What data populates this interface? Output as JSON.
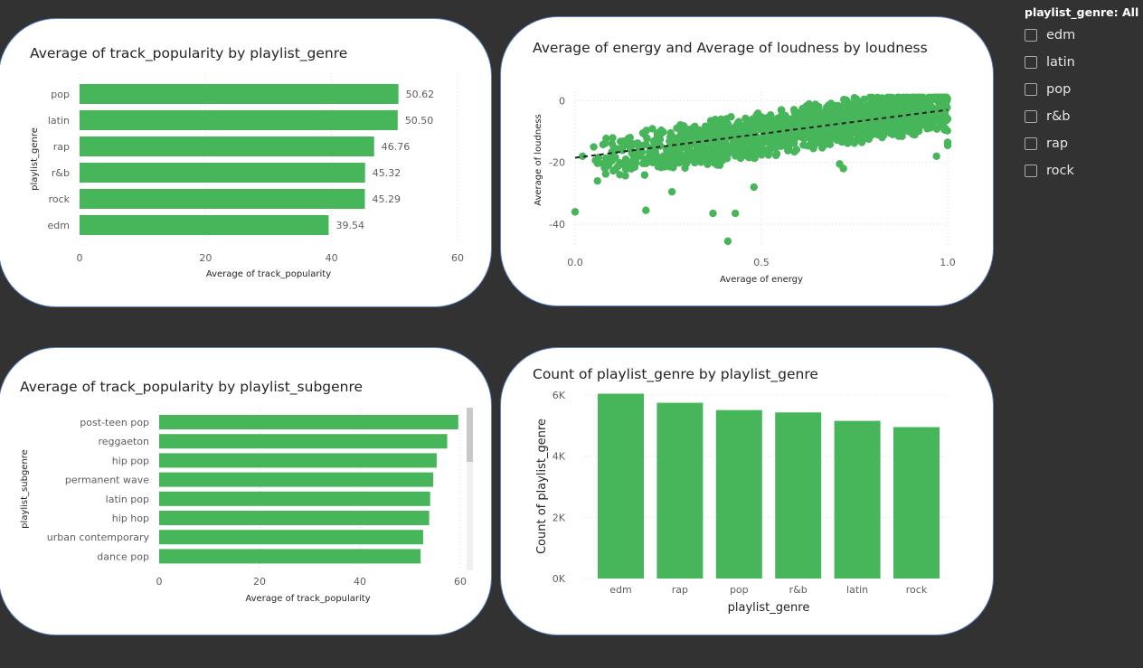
{
  "slicer": {
    "header": "playlist_genre: All",
    "items": [
      "edm",
      "latin",
      "pop",
      "r&b",
      "rap",
      "rock"
    ]
  },
  "colors": {
    "accent": "#47b65a",
    "card_border": "#5a7fc4",
    "background": "#323232",
    "trendline": "#222222"
  },
  "chart_data": [
    {
      "type": "bar",
      "orientation": "horizontal",
      "title": "Average of track_popularity by playlist_genre",
      "xlabel": "Average of track_popularity",
      "ylabel": "playlist_genre",
      "categories": [
        "pop",
        "latin",
        "rap",
        "r&b",
        "rock",
        "edm"
      ],
      "values": [
        50.62,
        50.5,
        46.76,
        45.32,
        45.29,
        39.54
      ],
      "value_labels": [
        "50.62",
        "50.50",
        "46.76",
        "45.32",
        "45.29",
        "39.54"
      ],
      "xlim": [
        0,
        60
      ],
      "xticks": [
        0,
        20,
        40,
        60
      ],
      "grid": true
    },
    {
      "type": "scatter",
      "title": "Average of energy and Average of loudness by loudness",
      "xlabel": "Average of energy",
      "ylabel": "Average of loudness",
      "xlim": [
        0,
        1
      ],
      "ylim": [
        -47,
        3
      ],
      "xticks": [
        "0.0",
        "0.5",
        "1.0"
      ],
      "yticks": [
        0,
        -20,
        -40
      ],
      "trendline": {
        "x": [
          0,
          1
        ],
        "y": [
          -18.5,
          -3
        ]
      },
      "series": [
        {
          "x": [
            0.0,
            0.02,
            0.05,
            0.06,
            0.12,
            0.19,
            0.26,
            0.37,
            0.41,
            0.43,
            0.48,
            0.71,
            0.72,
            0.95,
            1.0,
            1.0,
            0.97,
            0.08,
            0.11,
            0.14,
            0.22,
            0.09,
            0.31
          ],
          "y": [
            -36,
            -18,
            -15,
            -26,
            -24,
            -35.5,
            -29.5,
            -36.5,
            -45.5,
            -36.5,
            -28,
            -20.5,
            -22,
            -6,
            -14.5,
            -13.5,
            -18,
            -22,
            -16,
            -20,
            -18,
            -21,
            -19
          ]
        }
      ],
      "point_cloud": "dense band along trendline from (0.05,-20) to (1.0,-2)",
      "grid": true
    },
    {
      "type": "bar",
      "orientation": "horizontal",
      "title": "Average of track_popularity by playlist_subgenre",
      "xlabel": "Average of track_popularity",
      "ylabel": "playlist_subgenre",
      "categories": [
        "post-teen pop",
        "reggaeton",
        "hip pop",
        "permanent wave",
        "latin pop",
        "hip hop",
        "urban contemporary",
        "dance pop"
      ],
      "values": [
        59.6,
        57.4,
        55.3,
        54.6,
        54.0,
        53.8,
        52.6,
        52.1
      ],
      "xlim": [
        0,
        60
      ],
      "xticks": [
        0,
        20,
        40,
        60
      ],
      "grid": true,
      "scrollable": true
    },
    {
      "type": "bar",
      "orientation": "vertical",
      "title": "Count of playlist_genre by playlist_genre",
      "xlabel": "playlist_genre",
      "ylabel": "Count of playlist_genre",
      "categories": [
        "edm",
        "rap",
        "pop",
        "r&b",
        "latin",
        "rock"
      ],
      "values": [
        6043,
        5746,
        5507,
        5431,
        5155,
        4951
      ],
      "ylim": [
        0,
        6000
      ],
      "yticks": [
        "0K",
        "2K",
        "4K",
        "6K"
      ],
      "grid": true
    }
  ]
}
